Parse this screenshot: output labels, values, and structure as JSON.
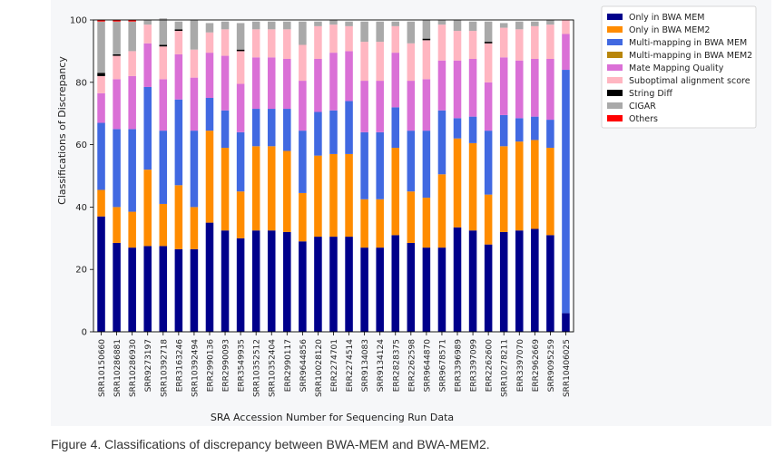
{
  "caption": "Figure 4. Classifications of discrepancy between BWA-MEM and BWA-MEM2.",
  "chart_data": {
    "type": "bar",
    "stacked": true,
    "xlabel": "SRA Accession Number for Sequencing Run Data",
    "ylabel": "Classifications of Discrepancy",
    "ylim": [
      0,
      100
    ],
    "yticks": [
      0,
      20,
      40,
      60,
      80,
      100
    ],
    "grid": false,
    "legend_position": "right",
    "categories": [
      "SRR10150660",
      "SRR10286881",
      "SRR10286930",
      "SRR9273197",
      "SRR10392718",
      "ERR3163246",
      "SRR10392494",
      "ERR2990136",
      "ERR2990093",
      "ERR3549935",
      "SRR10352512",
      "SRR10352404",
      "ERR2990117",
      "SRR9644856",
      "SRR10028120",
      "ERR2274701",
      "ERR2274514",
      "SRR9134083",
      "SRR9134124",
      "ERR2828375",
      "ERR2262598",
      "SRR9644870",
      "SRR9678571",
      "ERR3396989",
      "ERR3397099",
      "ERR2262600",
      "SRR10278211",
      "ERR3397070",
      "ERR2962669",
      "SRR9095259",
      "SRR10406025"
    ],
    "series": [
      {
        "name": "Only in BWA MEM",
        "color": "#00008b",
        "values": [
          37,
          28.5,
          27,
          27.5,
          27.5,
          26.5,
          26.5,
          35,
          32.5,
          30,
          32.5,
          32.5,
          32,
          29,
          30.5,
          30.5,
          30.5,
          27,
          27,
          31,
          28.5,
          27,
          27,
          33.5,
          32.5,
          28,
          32,
          32.5,
          33,
          31,
          6
        ]
      },
      {
        "name": "Only in BWA MEM2",
        "color": "#ff8c00",
        "values": [
          8.5,
          11.5,
          11.5,
          24.5,
          13.5,
          20.5,
          13.5,
          29.5,
          26.5,
          15,
          27,
          27,
          26,
          15.5,
          26,
          26.5,
          26.5,
          15.5,
          15.5,
          28,
          16.5,
          16,
          23.5,
          28.5,
          28,
          16,
          27.5,
          28.5,
          28.5,
          28,
          0
        ]
      },
      {
        "name": "Multi-mapping in BWA MEM",
        "color": "#4169e1",
        "values": [
          21.5,
          25,
          26.5,
          26.5,
          23.5,
          27.5,
          24.5,
          10.5,
          12,
          19,
          12,
          12,
          13.5,
          20,
          14,
          14,
          17,
          21.5,
          21.5,
          13,
          19.5,
          21.5,
          20.5,
          6.5,
          8.5,
          20.5,
          10,
          7.5,
          7.5,
          9,
          78
        ]
      },
      {
        "name": "Multi-mapping in BWA MEM2",
        "color": "#b8860b",
        "values": [
          0,
          0,
          0,
          0,
          0,
          0,
          0,
          0,
          0,
          0,
          0,
          0,
          0,
          0,
          0,
          0,
          0,
          0,
          0,
          0,
          0,
          0,
          0,
          0,
          0,
          0,
          0,
          0,
          0,
          0,
          0
        ]
      },
      {
        "name": "Mate Mapping Quality",
        "color": "#da70d6",
        "values": [
          9.5,
          16,
          17,
          14,
          16.5,
          14.5,
          17,
          14.5,
          17.5,
          15.5,
          16.5,
          16.5,
          16,
          16,
          17,
          18.5,
          16,
          16.5,
          16.5,
          17.5,
          16,
          16.5,
          16,
          18.5,
          18.5,
          15.5,
          18.5,
          18.5,
          18.5,
          19.5,
          11.5
        ]
      },
      {
        "name": "Suboptimal alignment score",
        "color": "#ffb6c1",
        "values": [
          5.5,
          7.5,
          8,
          6,
          10.5,
          7.5,
          9,
          6.5,
          8.5,
          10.5,
          9,
          9,
          9.5,
          11.5,
          10.5,
          9,
          8,
          12.5,
          12.5,
          8.5,
          12,
          12.5,
          11.5,
          9.5,
          9,
          12.5,
          9.5,
          10,
          10.5,
          11,
          4.5
        ]
      },
      {
        "name": "String Diff",
        "color": "#000000",
        "values": [
          1,
          0.5,
          0,
          0,
          0.5,
          0.5,
          0,
          0,
          0,
          0.5,
          0,
          0,
          0,
          0,
          0,
          0,
          0,
          0,
          0,
          0,
          0,
          0.5,
          0,
          0,
          0,
          0.5,
          0,
          0,
          0,
          0,
          0
        ]
      },
      {
        "name": "CIGAR",
        "color": "#a9a9a9",
        "values": [
          16.5,
          10.5,
          9.5,
          1.5,
          8.5,
          2.5,
          9.5,
          3,
          2.5,
          8.5,
          2.5,
          2.5,
          2.5,
          7.5,
          1.5,
          1.5,
          1.5,
          6.5,
          6.5,
          1.5,
          7,
          6,
          1.5,
          3.5,
          3,
          6.5,
          1.5,
          2.5,
          1.5,
          1.5,
          0
        ]
      },
      {
        "name": "Others",
        "color": "#ff0000",
        "values": [
          0.5,
          0.5,
          0.5,
          0,
          0,
          0,
          0,
          0,
          0,
          0,
          0,
          0,
          0,
          0,
          0,
          0,
          0,
          0,
          0,
          0,
          0,
          0,
          0,
          0,
          0,
          0,
          0,
          0,
          0,
          0,
          0
        ]
      }
    ]
  }
}
